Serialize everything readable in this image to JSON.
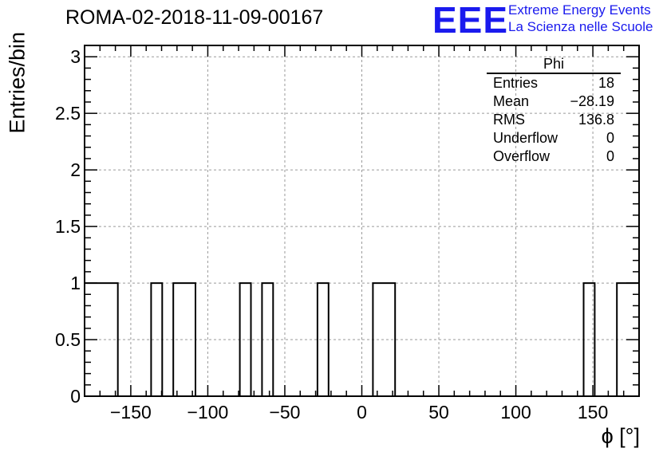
{
  "title": "ROMA-02-2018-11-09-00167",
  "logo": {
    "mark": "EEE",
    "line1": "Extreme Energy Events",
    "line2": "La Scienza nelle Scuole",
    "color": "#1a1aee"
  },
  "stats": {
    "title": "Phi",
    "rows": [
      {
        "label": "Entries",
        "value": "18"
      },
      {
        "label": "Mean",
        "value": "−28.19"
      },
      {
        "label": "RMS",
        "value": "136.8"
      },
      {
        "label": "Underflow",
        "value": "0"
      },
      {
        "label": "Overflow",
        "value": "0"
      }
    ]
  },
  "chart_data": {
    "type": "bar",
    "histogram": true,
    "xlabel": "ϕ [°]",
    "ylabel": "Entries/bin",
    "xlim": [
      -180,
      180
    ],
    "ylim": [
      0,
      3.1
    ],
    "x_ticks": [
      {
        "value": -150,
        "label": "−150"
      },
      {
        "value": -100,
        "label": "−100"
      },
      {
        "value": -50,
        "label": "−50"
      },
      {
        "value": 0,
        "label": "0"
      },
      {
        "value": 50,
        "label": "50"
      },
      {
        "value": 100,
        "label": "100"
      },
      {
        "value": 150,
        "label": "150"
      }
    ],
    "y_ticks": [
      {
        "value": 0,
        "label": "0"
      },
      {
        "value": 0.5,
        "label": "0.5"
      },
      {
        "value": 1,
        "label": "1"
      },
      {
        "value": 1.5,
        "label": "1.5"
      },
      {
        "value": 2,
        "label": "2"
      },
      {
        "value": 2.5,
        "label": "2.5"
      },
      {
        "value": 3,
        "label": "3"
      }
    ],
    "grid": true,
    "bin_width": 7.2,
    "bins": [
      {
        "low": -180,
        "high": -158.4,
        "count": 1
      },
      {
        "low": -136.8,
        "high": -129.6,
        "count": 1
      },
      {
        "low": -122.4,
        "high": -108,
        "count": 1
      },
      {
        "low": -79.2,
        "high": -72,
        "count": 1
      },
      {
        "low": -64.8,
        "high": -57.6,
        "count": 1
      },
      {
        "low": -28.8,
        "high": -21.6,
        "count": 1
      },
      {
        "low": 7.2,
        "high": 21.6,
        "count": 1
      },
      {
        "low": 144,
        "high": 151.2,
        "count": 1
      },
      {
        "low": 165.6,
        "high": 180,
        "count": 1
      }
    ]
  }
}
